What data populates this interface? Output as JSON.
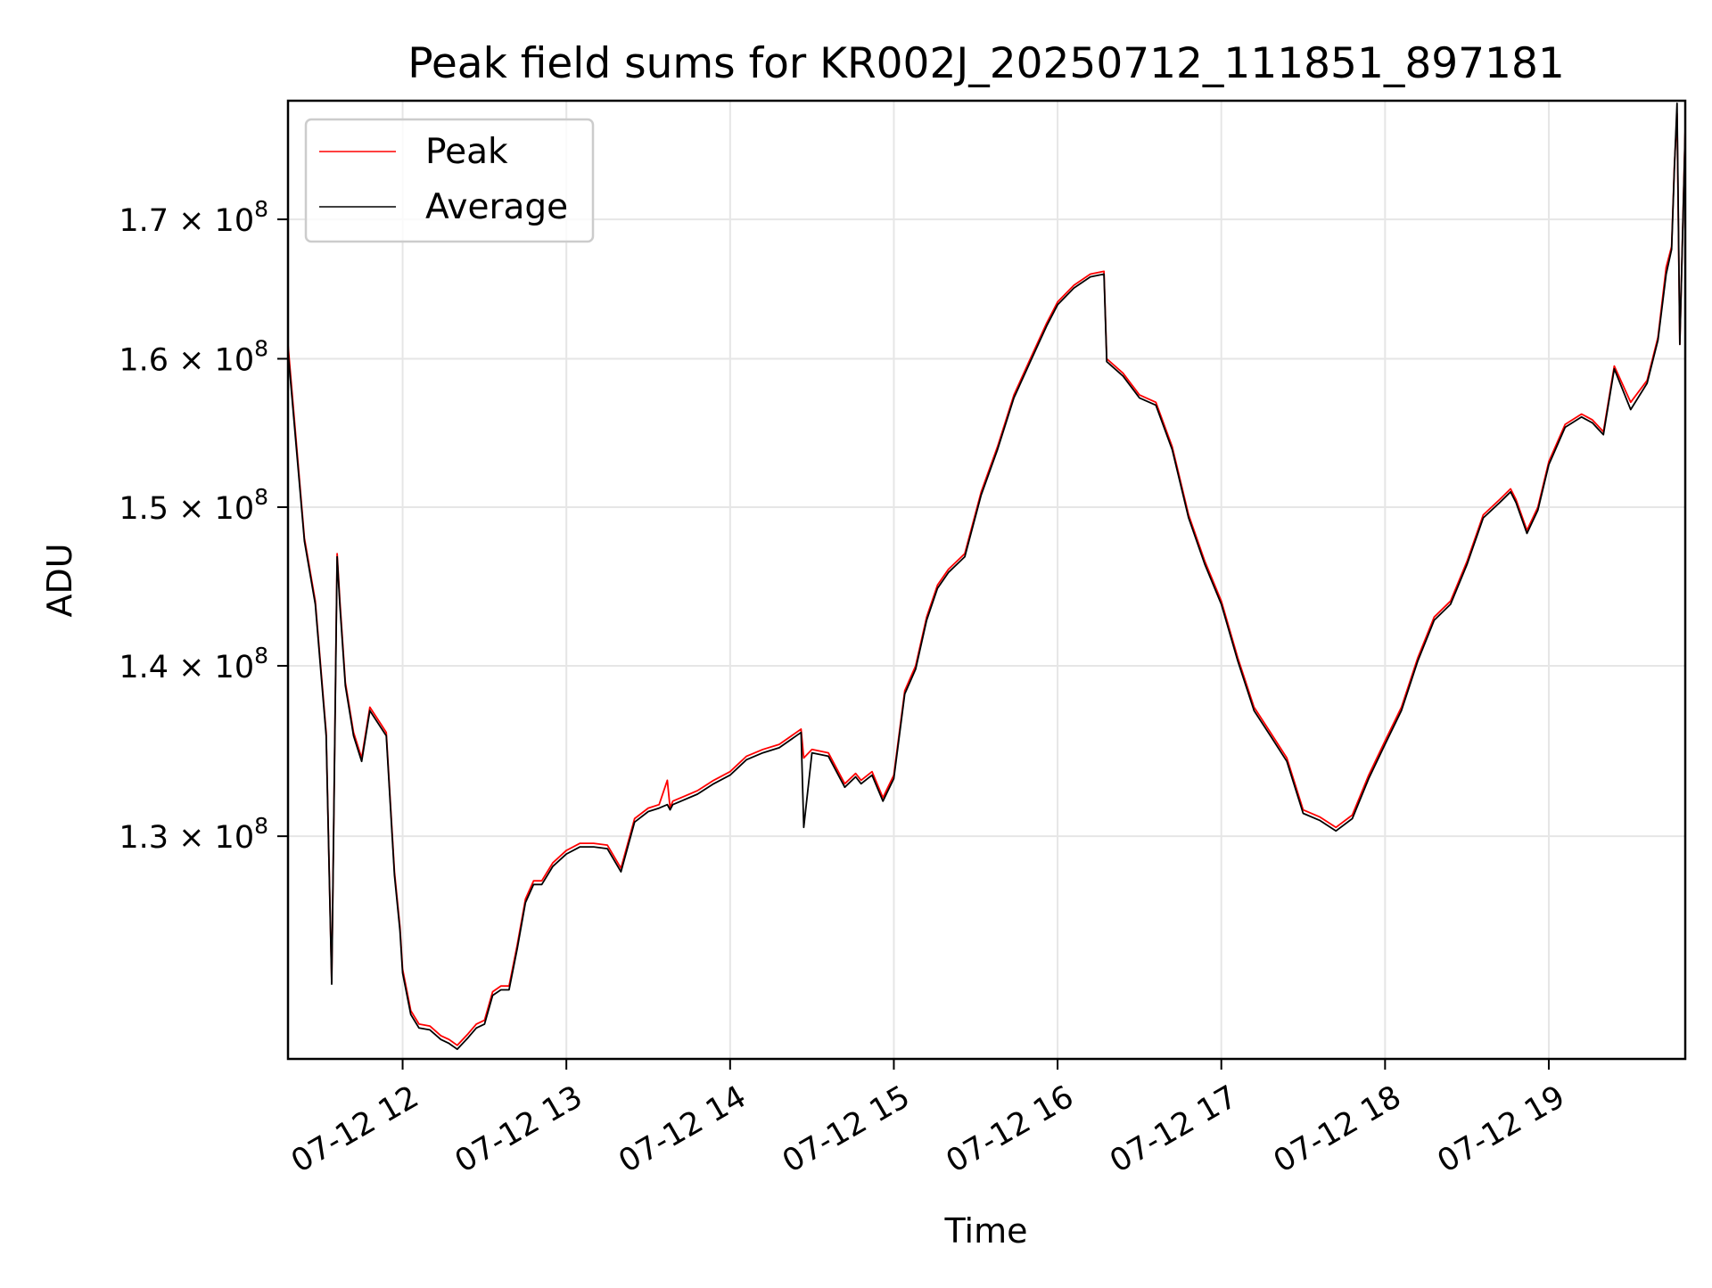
{
  "chart_data": {
    "type": "line",
    "title": "Peak field sums for KR002J_20250712_111851_897181",
    "xlabel": "Time",
    "ylabel": "ADU",
    "y_scale": "log",
    "date": "2025-07-12",
    "xlim": [
      "11:18",
      "19:50"
    ],
    "ylim": [
      118000000,
      179000000
    ],
    "xticks": [
      {
        "t": "12:00",
        "label": "07-12 12"
      },
      {
        "t": "13:00",
        "label": "07-12 13"
      },
      {
        "t": "14:00",
        "label": "07-12 14"
      },
      {
        "t": "15:00",
        "label": "07-12 15"
      },
      {
        "t": "16:00",
        "label": "07-12 16"
      },
      {
        "t": "17:00",
        "label": "07-12 17"
      },
      {
        "t": "18:00",
        "label": "07-12 18"
      },
      {
        "t": "19:00",
        "label": "07-12 19"
      }
    ],
    "yticks": [
      {
        "value": 130000000,
        "mantissa": "1.3",
        "exponent": "8"
      },
      {
        "value": 140000000,
        "mantissa": "1.4",
        "exponent": "8"
      },
      {
        "value": 150000000,
        "mantissa": "1.5",
        "exponent": "8"
      },
      {
        "value": 160000000,
        "mantissa": "1.6",
        "exponent": "8"
      },
      {
        "value": 170000000,
        "mantissa": "1.7",
        "exponent": "8"
      }
    ],
    "grid": true,
    "legend_position": "upper-left",
    "series": [
      {
        "name": "Peak",
        "color": "#ff0000",
        "x": [
          "11:18",
          "11:24",
          "11:28",
          "11:32",
          "11:34",
          "11:36",
          "11:37",
          "11:39",
          "11:42",
          "11:45",
          "11:48",
          "11:50",
          "11:52",
          "11:54",
          "11:57",
          "11:59",
          "12:00",
          "12:03",
          "12:06",
          "12:10",
          "12:14",
          "12:17",
          "12:20",
          "12:24",
          "12:27",
          "12:30",
          "12:33",
          "12:36",
          "12:39",
          "12:42",
          "12:45",
          "12:48",
          "12:51",
          "12:55",
          "13:00",
          "13:05",
          "13:10",
          "13:15",
          "13:20",
          "13:25",
          "13:30",
          "13:34",
          "13:37",
          "13:38",
          "13:39",
          "13:42",
          "13:48",
          "13:54",
          "14:00",
          "14:06",
          "14:12",
          "14:18",
          "14:26",
          "14:27",
          "14:30",
          "14:36",
          "14:42",
          "14:46",
          "14:48",
          "14:52",
          "14:56",
          "15:00",
          "15:04",
          "15:08",
          "15:12",
          "15:16",
          "15:20",
          "15:26",
          "15:32",
          "15:38",
          "15:44",
          "15:50",
          "15:56",
          "16:00",
          "16:06",
          "16:12",
          "16:17",
          "16:18",
          "16:24",
          "16:30",
          "16:36",
          "16:42",
          "16:48",
          "16:54",
          "17:00",
          "17:06",
          "17:12",
          "17:18",
          "17:24",
          "17:30",
          "17:36",
          "17:42",
          "17:48",
          "17:54",
          "18:00",
          "18:06",
          "18:12",
          "18:18",
          "18:24",
          "18:30",
          "18:36",
          "18:42",
          "18:46",
          "18:48",
          "18:52",
          "18:56",
          "19:00",
          "19:06",
          "19:12",
          "19:16",
          "19:18",
          "19:20",
          "19:24",
          "19:30",
          "19:36",
          "19:40",
          "19:43",
          "19:45",
          "19:46",
          "19:47",
          "19:48",
          "19:50"
        ],
        "values": [
          161000000,
          148000000,
          144000000,
          136000000,
          122000000,
          147000000,
          144000000,
          139000000,
          136000000,
          134500000,
          137500000,
          137000000,
          136500000,
          136000000,
          128000000,
          125000000,
          122700000,
          120500000,
          119800000,
          119700000,
          119200000,
          119000000,
          118700000,
          119300000,
          119800000,
          120000000,
          121500000,
          121800000,
          121800000,
          124000000,
          126500000,
          127500000,
          127500000,
          128500000,
          129200000,
          129600000,
          129600000,
          129500000,
          128200000,
          131000000,
          131600000,
          131800000,
          133200000,
          131600000,
          132000000,
          132200000,
          132600000,
          133200000,
          133700000,
          134600000,
          135000000,
          135300000,
          136200000,
          134500000,
          135000000,
          134800000,
          133000000,
          133600000,
          133200000,
          133700000,
          132200000,
          133500000,
          138500000,
          140000000,
          143000000,
          145000000,
          146000000,
          147000000,
          151000000,
          154000000,
          157500000,
          160000000,
          162500000,
          164000000,
          165200000,
          166000000,
          166200000,
          160000000,
          159000000,
          157500000,
          157000000,
          154000000,
          149500000,
          146500000,
          144000000,
          140500000,
          137500000,
          136000000,
          134500000,
          131500000,
          131100000,
          130500000,
          131200000,
          133500000,
          135500000,
          137500000,
          140500000,
          143000000,
          144000000,
          146500000,
          149500000,
          150500000,
          151200000,
          150500000,
          148500000,
          150000000,
          153000000,
          155500000,
          156200000,
          155800000,
          155400000,
          155000000,
          159500000,
          157000000,
          158500000,
          161500000,
          166500000,
          168000000,
          174000000,
          178000000,
          161000000,
          177000000
        ]
      },
      {
        "name": "Average",
        "color": "#000000",
        "x": [
          "11:18",
          "11:24",
          "11:28",
          "11:32",
          "11:34",
          "11:36",
          "11:37",
          "11:39",
          "11:42",
          "11:45",
          "11:48",
          "11:50",
          "11:52",
          "11:54",
          "11:57",
          "11:59",
          "12:00",
          "12:03",
          "12:06",
          "12:10",
          "12:14",
          "12:17",
          "12:20",
          "12:24",
          "12:27",
          "12:30",
          "12:33",
          "12:36",
          "12:39",
          "12:42",
          "12:45",
          "12:48",
          "12:51",
          "12:55",
          "13:00",
          "13:05",
          "13:10",
          "13:15",
          "13:20",
          "13:25",
          "13:30",
          "13:34",
          "13:37",
          "13:38",
          "13:39",
          "13:42",
          "13:48",
          "13:54",
          "14:00",
          "14:06",
          "14:12",
          "14:18",
          "14:26",
          "14:27",
          "14:30",
          "14:36",
          "14:42",
          "14:46",
          "14:48",
          "14:52",
          "14:56",
          "15:00",
          "15:04",
          "15:08",
          "15:12",
          "15:16",
          "15:20",
          "15:26",
          "15:32",
          "15:38",
          "15:44",
          "15:50",
          "15:56",
          "16:00",
          "16:06",
          "16:12",
          "16:17",
          "16:18",
          "16:24",
          "16:30",
          "16:36",
          "16:42",
          "16:48",
          "16:54",
          "17:00",
          "17:06",
          "17:12",
          "17:18",
          "17:24",
          "17:30",
          "17:36",
          "17:42",
          "17:48",
          "17:54",
          "18:00",
          "18:06",
          "18:12",
          "18:18",
          "18:24",
          "18:30",
          "18:36",
          "18:42",
          "18:46",
          "18:48",
          "18:52",
          "18:56",
          "19:00",
          "19:06",
          "19:12",
          "19:16",
          "19:18",
          "19:20",
          "19:24",
          "19:30",
          "19:36",
          "19:40",
          "19:43",
          "19:45",
          "19:46",
          "19:47",
          "19:48",
          "19:50"
        ],
        "values": [
          160500000,
          147800000,
          143800000,
          135800000,
          121900000,
          146800000,
          143700000,
          138800000,
          135800000,
          134300000,
          137300000,
          136800000,
          136300000,
          135800000,
          127800000,
          124800000,
          122500000,
          120300000,
          119600000,
          119500000,
          119000000,
          118800000,
          118500000,
          119100000,
          119600000,
          119800000,
          121300000,
          121600000,
          121600000,
          123800000,
          126300000,
          127300000,
          127300000,
          128300000,
          129000000,
          129400000,
          129400000,
          129300000,
          128000000,
          130800000,
          131400000,
          131600000,
          131800000,
          131500000,
          131800000,
          132000000,
          132400000,
          133000000,
          133500000,
          134400000,
          134800000,
          135100000,
          136000000,
          130500000,
          134800000,
          134600000,
          132800000,
          133400000,
          133000000,
          133500000,
          132000000,
          133300000,
          138300000,
          139800000,
          142800000,
          144800000,
          145800000,
          146800000,
          150800000,
          153800000,
          157300000,
          159800000,
          162300000,
          163800000,
          165000000,
          165800000,
          166000000,
          159800000,
          158800000,
          157300000,
          156800000,
          153800000,
          149300000,
          146300000,
          143800000,
          140300000,
          137300000,
          135800000,
          134300000,
          131300000,
          130900000,
          130300000,
          131000000,
          133300000,
          135300000,
          137300000,
          140300000,
          142800000,
          143800000,
          146300000,
          149300000,
          150300000,
          151000000,
          150300000,
          148300000,
          149800000,
          152800000,
          155300000,
          156000000,
          155600000,
          155200000,
          154800000,
          159300000,
          156500000,
          158300000,
          161300000,
          166000000,
          167800000,
          173800000,
          178800000,
          161000000,
          176800000
        ]
      }
    ]
  }
}
